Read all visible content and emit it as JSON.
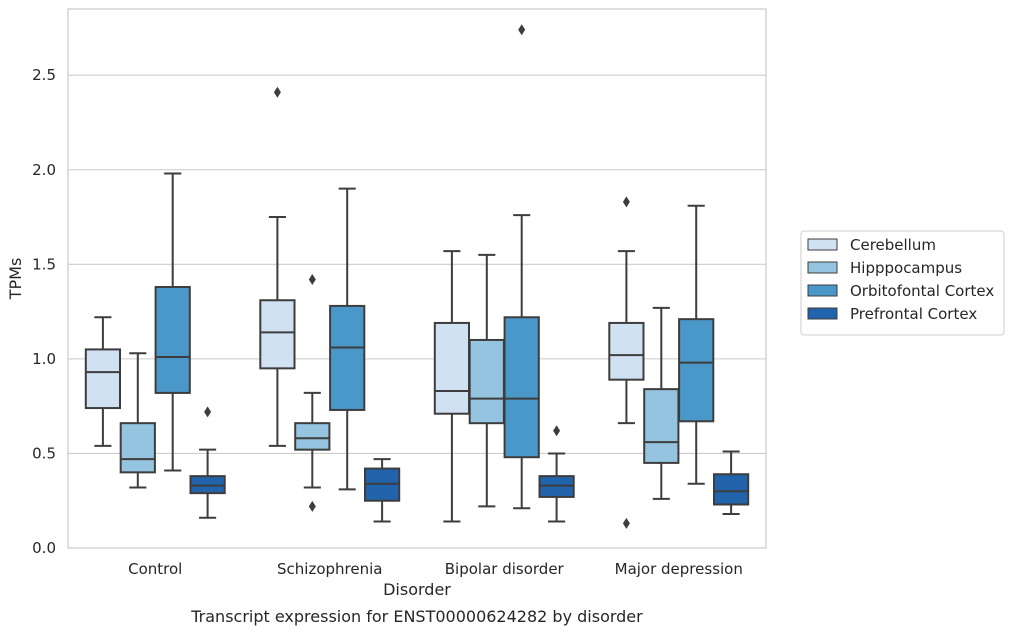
{
  "chart_data": {
    "type": "box",
    "title": "",
    "caption": "Transcript expression for ENST00000624282 by disorder",
    "xlabel": "Disorder",
    "ylabel": "TPMs",
    "ylim": [
      0,
      2.85
    ],
    "yticks": [
      0.0,
      0.5,
      1.0,
      1.5,
      2.0,
      2.5
    ],
    "ytick_labels": [
      "0.0",
      "0.5",
      "1.0",
      "1.5",
      "2.0",
      "2.5"
    ],
    "grid": "horizontal",
    "legend_position": "right",
    "categories": [
      "Control",
      "Schizophrenia",
      "Bipolar disorder",
      "Major depression"
    ],
    "series": [
      {
        "name": "Cerebellum",
        "color": "#d0e1f2",
        "boxes": [
          {
            "whislo": 0.54,
            "q1": 0.74,
            "med": 0.93,
            "q3": 1.05,
            "whishi": 1.22,
            "fliers": []
          },
          {
            "whislo": 0.54,
            "q1": 0.95,
            "med": 1.14,
            "q3": 1.31,
            "whishi": 1.75,
            "fliers": [
              2.41
            ]
          },
          {
            "whislo": 0.14,
            "q1": 0.71,
            "med": 0.83,
            "q3": 1.19,
            "whishi": 1.57,
            "fliers": []
          },
          {
            "whislo": 0.66,
            "q1": 0.89,
            "med": 1.02,
            "q3": 1.19,
            "whishi": 1.57,
            "fliers": [
              0.13,
              1.83
            ]
          }
        ]
      },
      {
        "name": "Hipppocampus",
        "color": "#94c4df",
        "boxes": [
          {
            "whislo": 0.32,
            "q1": 0.4,
            "med": 0.47,
            "q3": 0.66,
            "whishi": 1.03,
            "fliers": []
          },
          {
            "whislo": 0.32,
            "q1": 0.52,
            "med": 0.58,
            "q3": 0.66,
            "whishi": 0.82,
            "fliers": [
              0.22,
              1.42
            ]
          },
          {
            "whislo": 0.22,
            "q1": 0.66,
            "med": 0.79,
            "q3": 1.1,
            "whishi": 1.55,
            "fliers": []
          },
          {
            "whislo": 0.26,
            "q1": 0.45,
            "med": 0.56,
            "q3": 0.84,
            "whishi": 1.27,
            "fliers": []
          }
        ]
      },
      {
        "name": "Orbitofontal Cortex",
        "color": "#4a98c9",
        "boxes": [
          {
            "whislo": 0.41,
            "q1": 0.82,
            "med": 1.01,
            "q3": 1.38,
            "whishi": 1.98,
            "fliers": []
          },
          {
            "whislo": 0.31,
            "q1": 0.73,
            "med": 1.06,
            "q3": 1.28,
            "whishi": 1.9,
            "fliers": []
          },
          {
            "whislo": 0.21,
            "q1": 0.48,
            "med": 0.79,
            "q3": 1.22,
            "whishi": 1.76,
            "fliers": [
              2.74
            ]
          },
          {
            "whislo": 0.34,
            "q1": 0.67,
            "med": 0.98,
            "q3": 1.21,
            "whishi": 1.81,
            "fliers": []
          }
        ]
      },
      {
        "name": "Prefrontal Cortex",
        "color": "#2164ab",
        "boxes": [
          {
            "whislo": 0.16,
            "q1": 0.29,
            "med": 0.33,
            "q3": 0.38,
            "whishi": 0.52,
            "fliers": [
              0.72
            ]
          },
          {
            "whislo": 0.14,
            "q1": 0.25,
            "med": 0.34,
            "q3": 0.42,
            "whishi": 0.47,
            "fliers": []
          },
          {
            "whislo": 0.14,
            "q1": 0.27,
            "med": 0.33,
            "q3": 0.38,
            "whishi": 0.5,
            "fliers": [
              0.62
            ]
          },
          {
            "whislo": 0.18,
            "q1": 0.23,
            "med": 0.3,
            "q3": 0.39,
            "whishi": 0.51,
            "fliers": []
          }
        ]
      }
    ]
  }
}
